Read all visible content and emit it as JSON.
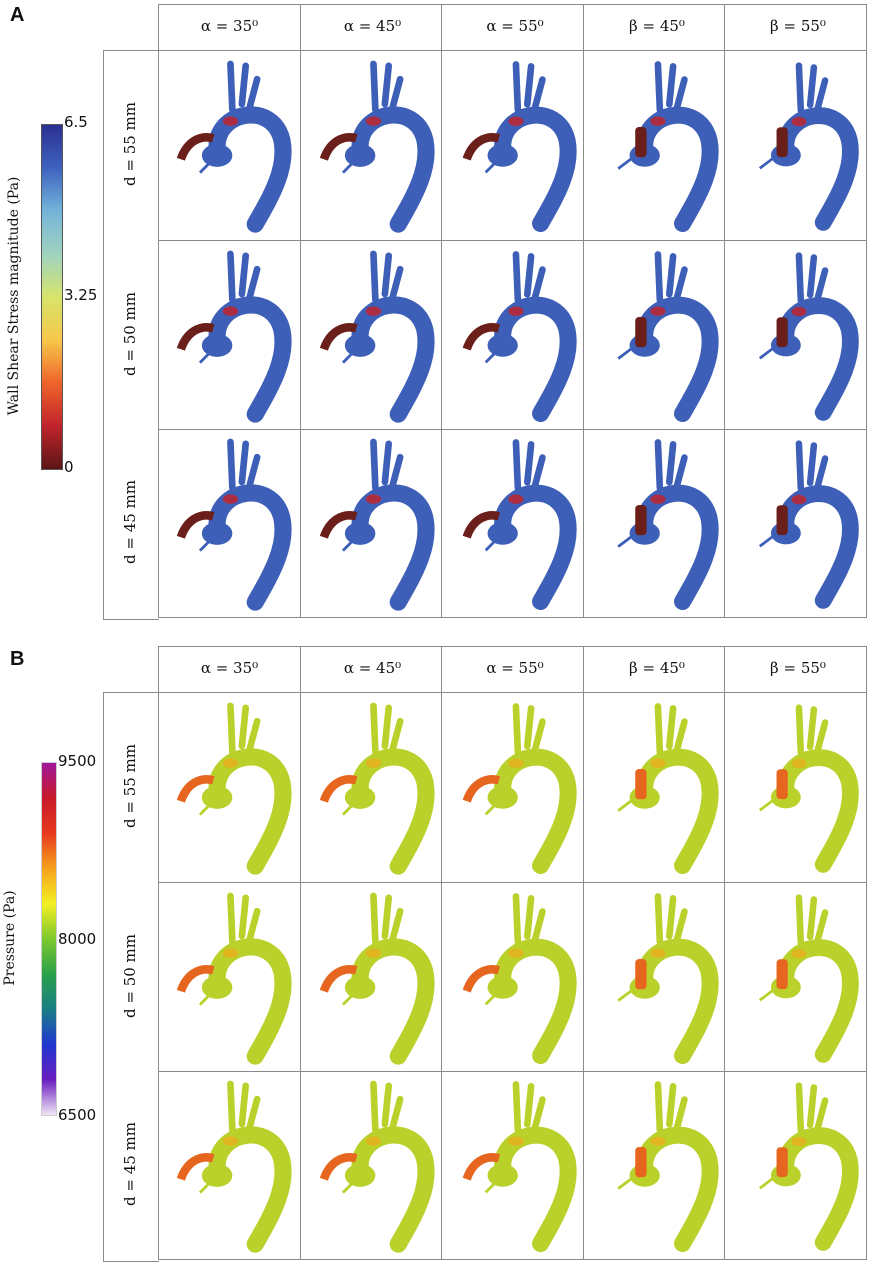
{
  "panels": [
    {
      "letter": "A",
      "colorbar": {
        "title": "Wall Shear Stress magnitude (Pa)",
        "tick_max": "6.5",
        "tick_mid": "3.25",
        "tick_min": "0",
        "colors": [
          "#2b2f8f",
          "#3f63c0",
          "#74b4d9",
          "#9fd2c0",
          "#d7e46b",
          "#f6c74a",
          "#f0642b",
          "#c0242b",
          "#5a1515"
        ]
      },
      "columns": [
        "α = 35⁰",
        "α = 45⁰",
        "α = 55⁰",
        "β = 45⁰",
        "β = 55⁰"
      ],
      "rows": [
        "d = 55 mm",
        "d = 50 mm",
        "d = 45 mm"
      ],
      "body_color": "#3d5fb8",
      "graft_color": "#6b1f1a"
    },
    {
      "letter": "B",
      "colorbar": {
        "title": "Pressure (Pa)",
        "tick_max": "9500",
        "tick_mid": "8000",
        "tick_min": "6500",
        "colors": [
          "#a0189a",
          "#c81a2a",
          "#e8391e",
          "#f6a21c",
          "#f4ef24",
          "#7cc92c",
          "#2aa04a",
          "#1a7f86",
          "#2036d0",
          "#6a1ec0",
          "#f1e6f6"
        ]
      },
      "columns": [
        "α = 35⁰",
        "α = 45⁰",
        "α = 55⁰",
        "β = 45⁰",
        "β = 55⁰"
      ],
      "rows": [
        "d = 55 mm",
        "d = 50 mm",
        "d = 45 mm"
      ],
      "body_color": "#b9d12a",
      "graft_color": "#e6661f"
    }
  ]
}
